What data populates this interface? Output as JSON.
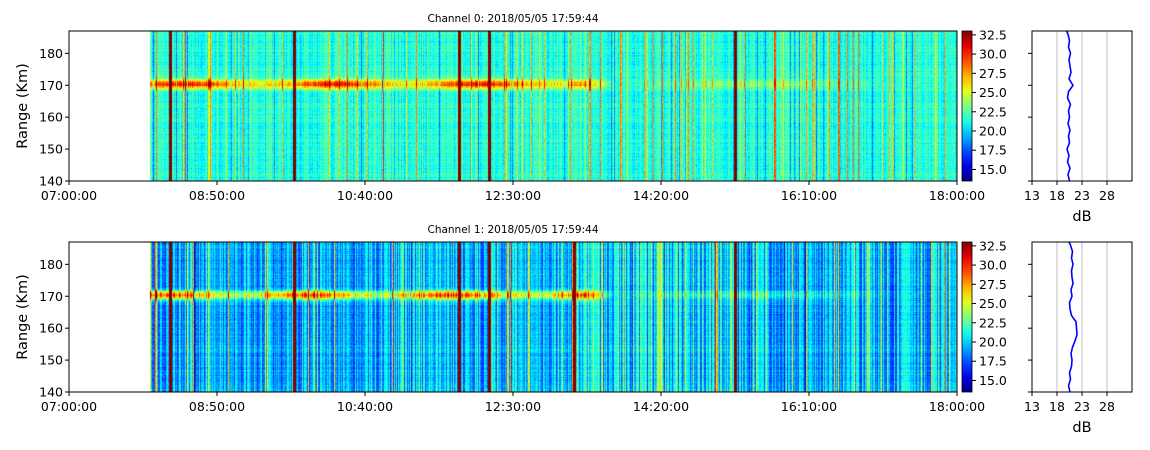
{
  "panels": [
    {
      "title": "Channel 0: 2018/05/05 17:59:44",
      "ylabel": "Range (Km)",
      "xticks": [
        "07:00:00",
        "08:50:00",
        "10:40:00",
        "12:30:00",
        "14:20:00",
        "16:10:00",
        "18:00:00"
      ],
      "yticks": [
        "140",
        "150",
        "160",
        "170",
        "180"
      ],
      "cbar_ticks": [
        "15.0",
        "17.5",
        "20.0",
        "22.5",
        "25.0",
        "27.5",
        "30.0",
        "32.5"
      ],
      "profile_xticks": [
        "13",
        "18",
        "23",
        "28"
      ],
      "profile_xlabel": "dB"
    },
    {
      "title": "Channel 1: 2018/05/05 17:59:44",
      "ylabel": "Range (Km)",
      "xticks": [
        "07:00:00",
        "08:50:00",
        "10:40:00",
        "12:30:00",
        "14:20:00",
        "16:10:00",
        "18:00:00"
      ],
      "yticks": [
        "140",
        "150",
        "160",
        "170",
        "180"
      ],
      "cbar_ticks": [
        "15.0",
        "17.5",
        "20.0",
        "22.5",
        "25.0",
        "27.5",
        "30.0",
        "32.5"
      ],
      "profile_xticks": [
        "13",
        "18",
        "23",
        "28"
      ],
      "profile_xlabel": "dB"
    }
  ],
  "chart_data": [
    {
      "type": "heatmap",
      "title": "Channel 0: 2018/05/05 17:59:44",
      "ylabel": "Range (Km)",
      "x_range": [
        "07:00:00",
        "18:00:00"
      ],
      "data_start": "08:00:00",
      "ylim": [
        140,
        187
      ],
      "clim": [
        13.5,
        33
      ],
      "colormap": "jet",
      "colorbar": true,
      "background_level_db": 21.5,
      "echo_band": {
        "range_km": 170.5,
        "start": "08:00:00",
        "end": "13:45:00",
        "peak_db": 30.5
      },
      "strong_columns": [
        "08:15:00",
        "09:47:00",
        "11:50:00",
        "12:12:00",
        "15:15:00"
      ],
      "profile": {
        "xlabel": "dB",
        "xlim": [
          13,
          33
        ],
        "grid": true,
        "color": "#0000ff",
        "range_km": [
          140,
          142,
          144,
          146,
          148,
          150,
          152,
          154,
          156,
          158,
          160,
          162,
          164,
          166,
          168,
          170,
          172,
          174,
          176,
          178,
          180,
          182,
          184,
          186,
          187
        ],
        "values": [
          20.5,
          20.2,
          20.6,
          20.1,
          20.4,
          20.0,
          20.5,
          20.3,
          20.6,
          20.2,
          20.5,
          20.3,
          20.7,
          20.1,
          20.3,
          21.2,
          20.4,
          20.8,
          20.6,
          20.4,
          20.7,
          20.3,
          20.5,
          20.2,
          19.9
        ]
      }
    },
    {
      "type": "heatmap",
      "title": "Channel 1: 2018/05/05 17:59:44",
      "ylabel": "Range (Km)",
      "x_range": [
        "07:00:00",
        "18:00:00"
      ],
      "data_start": "08:00:00",
      "ylim": [
        140,
        187
      ],
      "clim": [
        13.5,
        33
      ],
      "colormap": "jet",
      "colorbar": true,
      "background_level_db": 19.5,
      "echo_band": {
        "range_km": 170.5,
        "start": "08:00:00",
        "end": "13:45:00",
        "peak_db": 29.5
      },
      "strong_columns": [
        "08:15:00",
        "09:47:00",
        "11:50:00",
        "12:12:00",
        "13:15:00",
        "15:15:00"
      ],
      "profile": {
        "xlabel": "dB",
        "xlim": [
          13,
          33
        ],
        "grid": true,
        "color": "#0000ff",
        "range_km": [
          140,
          142,
          144,
          146,
          148,
          150,
          152,
          154,
          156,
          158,
          160,
          162,
          164,
          166,
          168,
          170,
          172,
          174,
          176,
          178,
          180,
          182,
          184,
          186,
          187
        ],
        "values": [
          20.6,
          20.3,
          20.7,
          20.5,
          20.9,
          21.0,
          20.8,
          21.1,
          21.6,
          22.0,
          21.9,
          21.8,
          20.9,
          20.6,
          20.5,
          21.0,
          20.8,
          21.2,
          21.0,
          20.9,
          21.2,
          20.9,
          21.1,
          20.7,
          20.4
        ]
      }
    }
  ]
}
